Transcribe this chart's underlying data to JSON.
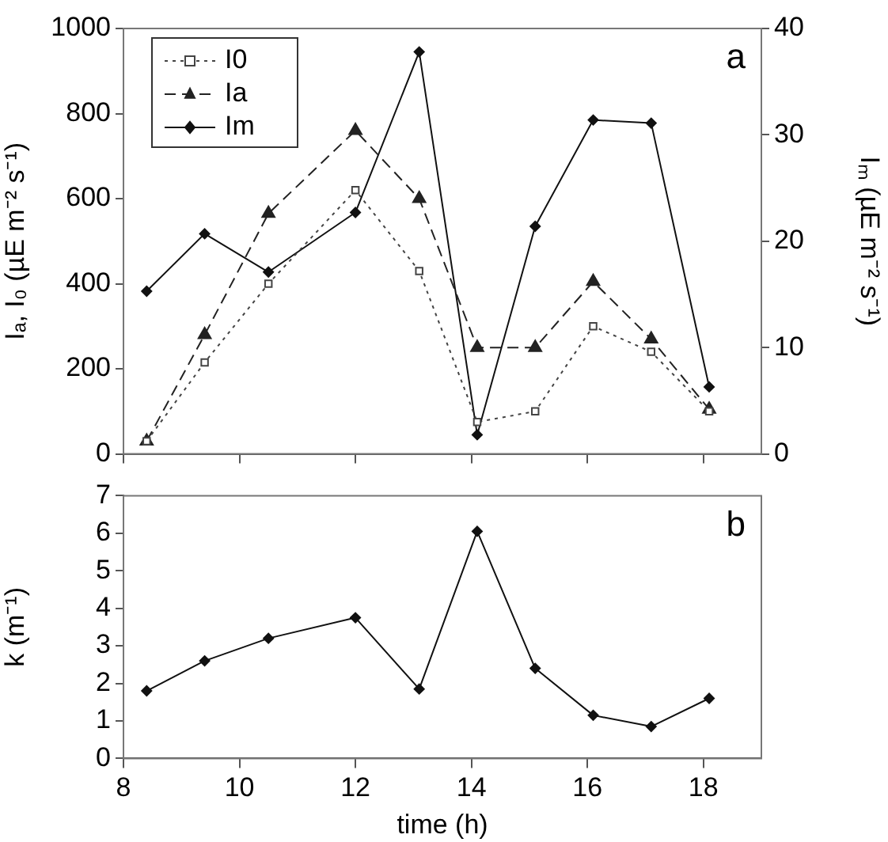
{
  "chart_data": [
    {
      "type": "line",
      "ylabel": "Iₐ, I₀ (µE m⁻² s⁻¹)",
      "y2label": "Iₘ (µE m⁻² s⁻¹)",
      "annotations": [
        "a"
      ],
      "x": [
        8.4,
        9.4,
        10.5,
        12.0,
        13.1,
        14.1,
        15.1,
        16.1,
        17.1,
        18.1
      ],
      "series": [
        {
          "name": "I0",
          "color": "#444444",
          "marker": "square",
          "line_style": "dotted",
          "values": [
            30,
            215,
            400,
            620,
            430,
            75,
            100,
            300,
            240,
            100
          ]
        },
        {
          "name": "Ia",
          "color": "#222222",
          "marker": "triangle",
          "line_style": "dashed",
          "values": [
            30,
            280,
            565,
            760,
            600,
            250,
            250,
            405,
            270,
            105
          ]
        },
        {
          "name": "Im",
          "color": "#111111",
          "marker": "diamond",
          "line_style": "solid",
          "axis": "y2",
          "values": [
            15.3,
            20.7,
            17.1,
            22.7,
            37.8,
            1.8,
            21.4,
            31.4,
            31.1,
            6.3
          ]
        }
      ],
      "xlim": [
        8,
        19
      ],
      "xticks": [
        8,
        10,
        12,
        14,
        16,
        18
      ],
      "tick_labels": "y",
      "ylim": [
        0,
        1000
      ],
      "yticks": [
        0,
        200,
        400,
        600,
        800,
        1000
      ],
      "y2lim": [
        0,
        40
      ],
      "y2ticks": [
        0,
        10,
        20,
        30,
        40
      ],
      "legend": "top left"
    },
    {
      "type": "line",
      "xlabel": "time (h)",
      "ylabel": "k (m⁻¹)",
      "annotations": [
        "b"
      ],
      "x": [
        8.4,
        9.4,
        10.5,
        12.0,
        13.1,
        14.1,
        15.1,
        16.1,
        17.1,
        18.1
      ],
      "series": [
        {
          "color": "#111111",
          "marker": "diamond",
          "line_style": "solid",
          "values": [
            1.8,
            2.6,
            3.2,
            3.75,
            1.85,
            6.05,
            2.4,
            1.15,
            0.85,
            1.6
          ]
        }
      ],
      "xlim": [
        8,
        19
      ],
      "xticks": [
        8,
        10,
        12,
        14,
        16,
        18
      ],
      "ylim": [
        0,
        7
      ],
      "yticks": [
        0,
        1,
        2,
        3,
        4,
        5,
        6,
        7
      ]
    }
  ]
}
